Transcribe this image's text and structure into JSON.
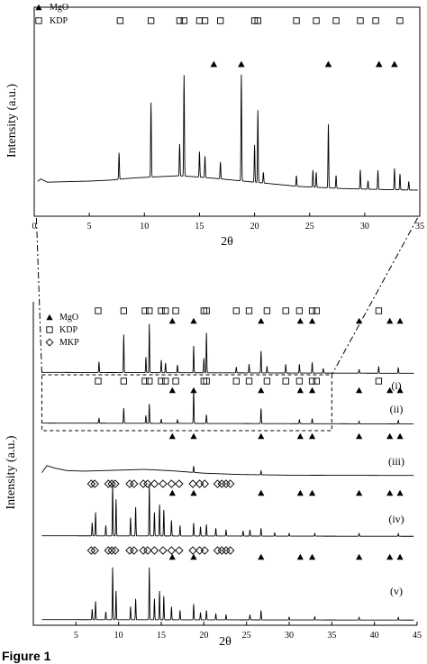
{
  "figure_label": "Figure 1",
  "chart_data": [
    {
      "type": "line",
      "xlabel": "2θ",
      "ylabel": "Intensity (a.u.)",
      "xlim": [
        0,
        35
      ],
      "xticks": [
        0,
        5,
        10,
        15,
        20,
        25,
        30,
        35
      ],
      "legend": [
        {
          "symbol": "filled-triangle",
          "label": "MgO"
        },
        {
          "symbol": "open-square",
          "label": "KDP"
        }
      ],
      "markers": {
        "KDP": [
          7.8,
          10.6,
          13.2,
          13.6,
          15.0,
          15.5,
          16.9,
          20.0,
          20.3,
          23.8,
          25.6,
          27.4,
          29.6,
          31.0,
          33.2
        ],
        "MgO": [
          16.3,
          18.8,
          26.7,
          31.3,
          32.7
        ]
      },
      "pattern": {
        "baseline": [
          [
            0.2,
            0.1
          ],
          [
            0.6,
            0.13
          ],
          [
            1.2,
            0.1
          ],
          [
            3,
            0.105
          ],
          [
            5,
            0.11
          ],
          [
            7,
            0.12
          ],
          [
            9,
            0.14
          ],
          [
            11,
            0.15
          ],
          [
            13,
            0.16
          ],
          [
            14,
            0.155
          ],
          [
            16,
            0.14
          ],
          [
            18,
            0.12
          ],
          [
            20,
            0.1
          ],
          [
            22,
            0.08
          ],
          [
            24,
            0.06
          ],
          [
            26,
            0.05
          ],
          [
            28,
            0.04
          ],
          [
            30,
            0.035
          ],
          [
            32,
            0.03
          ],
          [
            35,
            0.025
          ]
        ],
        "peaks": [
          {
            "x": 7.7,
            "h": 0.25
          },
          {
            "x": 10.6,
            "h": 0.7
          },
          {
            "x": 13.2,
            "h": 0.3
          },
          {
            "x": 13.6,
            "h": 0.95
          },
          {
            "x": 15.0,
            "h": 0.24
          },
          {
            "x": 15.5,
            "h": 0.2
          },
          {
            "x": 16.9,
            "h": 0.16
          },
          {
            "x": 18.8,
            "h": 1.0
          },
          {
            "x": 20.0,
            "h": 0.35
          },
          {
            "x": 20.3,
            "h": 0.68
          },
          {
            "x": 20.8,
            "h": 0.1
          },
          {
            "x": 23.8,
            "h": 0.1
          },
          {
            "x": 25.3,
            "h": 0.16
          },
          {
            "x": 25.6,
            "h": 0.14
          },
          {
            "x": 26.7,
            "h": 0.6
          },
          {
            "x": 27.4,
            "h": 0.12
          },
          {
            "x": 29.6,
            "h": 0.18
          },
          {
            "x": 30.3,
            "h": 0.08
          },
          {
            "x": 31.2,
            "h": 0.18
          },
          {
            "x": 32.7,
            "h": 0.2
          },
          {
            "x": 33.2,
            "h": 0.15
          },
          {
            "x": 34.0,
            "h": 0.08
          }
        ]
      }
    },
    {
      "type": "line",
      "xlabel": "2θ",
      "ylabel": "Intensity (a.u.)",
      "xlim": [
        0,
        45
      ],
      "xticks": [
        5,
        10,
        15,
        20,
        25,
        30,
        35,
        40,
        45
      ],
      "legend": [
        {
          "symbol": "filled-triangle",
          "label": "MgO"
        },
        {
          "symbol": "open-square",
          "label": "KDP"
        },
        {
          "symbol": "open-diamond",
          "label": "MKP"
        }
      ],
      "series": [
        {
          "name": "(i)",
          "markers": {
            "KDP": [
              7.6,
              10.6,
              13.1,
              13.6,
              15.0,
              15.5,
              16.7,
              20.0,
              20.3,
              23.8,
              25.3,
              27.4,
              29.6,
              31.2,
              32.7,
              33.2,
              40.5
            ],
            "MgO": [
              16.3,
              18.8,
              26.7,
              31.3,
              32.7,
              38.2,
              41.8,
              43.0
            ]
          },
          "pattern": {
            "baseline": [
              [
                1,
                0.05
              ],
              [
                45,
                0.03
              ]
            ],
            "peaks": [
              {
                "x": 7.7,
                "h": 0.22
              },
              {
                "x": 10.6,
                "h": 0.78
              },
              {
                "x": 13.2,
                "h": 0.32
              },
              {
                "x": 13.6,
                "h": 1.0
              },
              {
                "x": 15.0,
                "h": 0.26
              },
              {
                "x": 15.5,
                "h": 0.2
              },
              {
                "x": 16.9,
                "h": 0.16
              },
              {
                "x": 18.8,
                "h": 0.55
              },
              {
                "x": 20.0,
                "h": 0.3
              },
              {
                "x": 20.3,
                "h": 0.82
              },
              {
                "x": 23.8,
                "h": 0.12
              },
              {
                "x": 25.3,
                "h": 0.18
              },
              {
                "x": 26.7,
                "h": 0.45
              },
              {
                "x": 27.4,
                "h": 0.14
              },
              {
                "x": 29.6,
                "h": 0.18
              },
              {
                "x": 31.2,
                "h": 0.18
              },
              {
                "x": 32.7,
                "h": 0.22
              },
              {
                "x": 34.0,
                "h": 0.1
              },
              {
                "x": 38.2,
                "h": 0.08
              },
              {
                "x": 40.5,
                "h": 0.14
              },
              {
                "x": 42.8,
                "h": 0.12
              }
            ]
          }
        },
        {
          "name": "(ii)",
          "markers": {
            "KDP": [
              7.6,
              10.6,
              13.1,
              13.6,
              15.0,
              15.5,
              16.7,
              20.0,
              20.3,
              23.8,
              25.3,
              27.4,
              29.6,
              31.2,
              32.7,
              33.2,
              40.5
            ],
            "MgO": [
              16.3,
              18.8,
              26.7,
              31.3,
              32.7,
              38.2,
              41.8,
              43.0
            ]
          },
          "pattern": {
            "baseline": [
              [
                1,
                0.05
              ],
              [
                45,
                0.03
              ]
            ],
            "peaks": [
              {
                "x": 7.7,
                "h": 0.12
              },
              {
                "x": 10.6,
                "h": 0.35
              },
              {
                "x": 13.2,
                "h": 0.18
              },
              {
                "x": 13.6,
                "h": 0.45
              },
              {
                "x": 15.0,
                "h": 0.1
              },
              {
                "x": 16.9,
                "h": 0.08
              },
              {
                "x": 18.8,
                "h": 0.8
              },
              {
                "x": 20.3,
                "h": 0.2
              },
              {
                "x": 26.7,
                "h": 0.35
              },
              {
                "x": 31.2,
                "h": 0.1
              },
              {
                "x": 32.7,
                "h": 0.12
              },
              {
                "x": 38.2,
                "h": 0.06
              },
              {
                "x": 42.8,
                "h": 0.08
              }
            ]
          }
        },
        {
          "name": "(iii)",
          "markers": {
            "MgO": [
              16.3,
              18.8,
              26.7,
              31.3,
              32.7,
              38.2,
              41.8,
              43.0
            ]
          },
          "pattern": {
            "baseline": [
              [
                1,
                0.12
              ],
              [
                1.6,
                0.4
              ],
              [
                2.5,
                0.3
              ],
              [
                4,
                0.2
              ],
              [
                6,
                0.18
              ],
              [
                10,
                0.22
              ],
              [
                13,
                0.25
              ],
              [
                16,
                0.2
              ],
              [
                20,
                0.1
              ],
              [
                24,
                0.05
              ],
              [
                30,
                0.02
              ],
              [
                45,
                0.01
              ]
            ],
            "peaks": [
              {
                "x": 18.8,
                "h": 0.25
              },
              {
                "x": 26.7,
                "h": 0.15
              }
            ]
          }
        },
        {
          "name": "(iv)",
          "markers": {
            "MKP": [
              6.8,
              7.2,
              8.8,
              9.2,
              9.6,
              11.3,
              11.8,
              12.9,
              13.4,
              14.2,
              15.2,
              16.2,
              17.1,
              18.7,
              19.5,
              20.1,
              21.6,
              22.1,
              22.6,
              23.1
            ],
            "MgO": [
              16.3,
              18.8,
              26.7,
              31.3,
              32.7,
              38.2,
              41.8,
              43.0
            ]
          },
          "pattern": {
            "baseline": [
              [
                1,
                0.04
              ],
              [
                45,
                0.03
              ]
            ],
            "peaks": [
              {
                "x": 6.9,
                "h": 0.25
              },
              {
                "x": 7.3,
                "h": 0.45
              },
              {
                "x": 8.5,
                "h": 0.2
              },
              {
                "x": 9.3,
                "h": 1.0
              },
              {
                "x": 9.7,
                "h": 0.7
              },
              {
                "x": 11.4,
                "h": 0.35
              },
              {
                "x": 12.0,
                "h": 0.55
              },
              {
                "x": 13.6,
                "h": 1.0
              },
              {
                "x": 14.2,
                "h": 0.45
              },
              {
                "x": 14.8,
                "h": 0.6
              },
              {
                "x": 15.3,
                "h": 0.5
              },
              {
                "x": 16.2,
                "h": 0.3
              },
              {
                "x": 17.2,
                "h": 0.2
              },
              {
                "x": 18.8,
                "h": 0.25
              },
              {
                "x": 19.6,
                "h": 0.18
              },
              {
                "x": 20.3,
                "h": 0.22
              },
              {
                "x": 21.4,
                "h": 0.15
              },
              {
                "x": 22.6,
                "h": 0.12
              },
              {
                "x": 24.6,
                "h": 0.1
              },
              {
                "x": 25.4,
                "h": 0.12
              },
              {
                "x": 26.7,
                "h": 0.15
              },
              {
                "x": 28.3,
                "h": 0.06
              },
              {
                "x": 30.0,
                "h": 0.05
              },
              {
                "x": 33.0,
                "h": 0.05
              },
              {
                "x": 38.2,
                "h": 0.05
              },
              {
                "x": 42.8,
                "h": 0.05
              }
            ]
          }
        },
        {
          "name": "(v)",
          "markers": {
            "MKP": [
              6.8,
              7.2,
              8.8,
              9.2,
              9.6,
              11.3,
              11.8,
              12.9,
              13.4,
              14.2,
              15.2,
              16.2,
              17.1,
              18.7,
              19.5,
              20.1,
              21.6,
              22.1,
              22.6,
              23.1
            ],
            "MgO": [
              16.3,
              18.8,
              26.7,
              31.3,
              32.7,
              38.2,
              41.8,
              43.0
            ]
          },
          "pattern": {
            "baseline": [
              [
                1,
                0.04
              ],
              [
                45,
                0.03
              ]
            ],
            "peaks": [
              {
                "x": 6.9,
                "h": 0.2
              },
              {
                "x": 7.3,
                "h": 0.35
              },
              {
                "x": 8.5,
                "h": 0.15
              },
              {
                "x": 9.3,
                "h": 1.0
              },
              {
                "x": 9.7,
                "h": 0.55
              },
              {
                "x": 11.4,
                "h": 0.25
              },
              {
                "x": 12.0,
                "h": 0.4
              },
              {
                "x": 13.6,
                "h": 1.0
              },
              {
                "x": 14.2,
                "h": 0.4
              },
              {
                "x": 14.8,
                "h": 0.55
              },
              {
                "x": 15.3,
                "h": 0.45
              },
              {
                "x": 16.2,
                "h": 0.25
              },
              {
                "x": 17.2,
                "h": 0.18
              },
              {
                "x": 18.8,
                "h": 0.3
              },
              {
                "x": 19.6,
                "h": 0.14
              },
              {
                "x": 20.3,
                "h": 0.18
              },
              {
                "x": 21.4,
                "h": 0.12
              },
              {
                "x": 22.6,
                "h": 0.1
              },
              {
                "x": 25.4,
                "h": 0.1
              },
              {
                "x": 26.7,
                "h": 0.18
              },
              {
                "x": 30.0,
                "h": 0.05
              },
              {
                "x": 33.0,
                "h": 0.06
              },
              {
                "x": 38.2,
                "h": 0.05
              },
              {
                "x": 42.8,
                "h": 0.05
              }
            ]
          }
        }
      ]
    }
  ]
}
